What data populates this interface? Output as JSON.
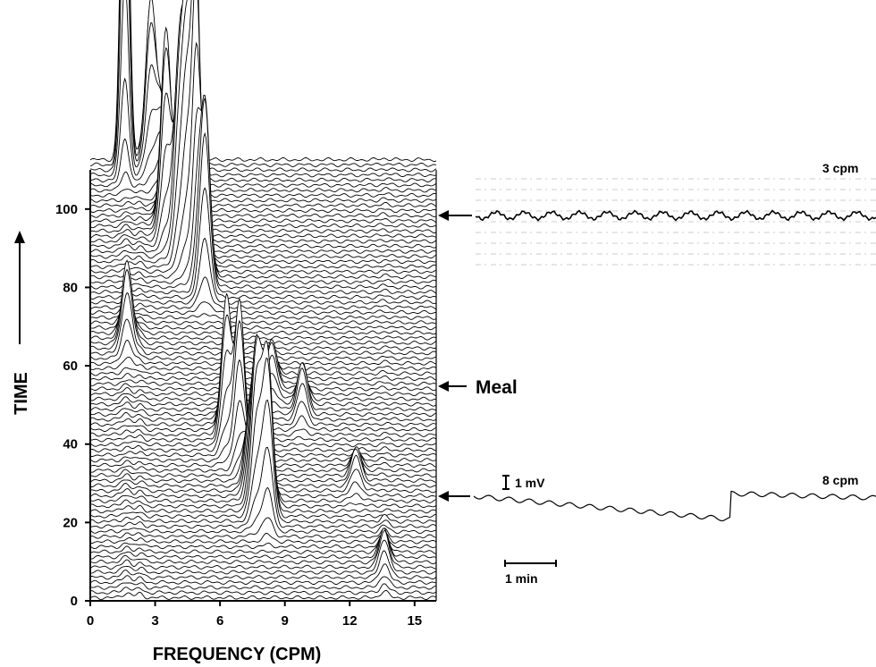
{
  "chart_data": [
    {
      "type": "waterfall-spectra",
      "xlabel": "FREQUENCY (CPM)",
      "ylabel": "TIME",
      "xlim": [
        0,
        16
      ],
      "ylim": [
        0,
        110
      ],
      "xticks": [
        0,
        3,
        6,
        9,
        12,
        15
      ],
      "yticks": [
        0,
        20,
        40,
        60,
        80,
        100
      ],
      "meal_time": 55,
      "peaks": [
        {
          "freq": 1.6,
          "time": 112,
          "height": 112
        },
        {
          "freq": 2.8,
          "time": 111,
          "height": 42
        },
        {
          "freq": 3.3,
          "time": 108,
          "height": 18
        },
        {
          "freq": 3.5,
          "time": 95,
          "height": 50
        },
        {
          "freq": 4.1,
          "time": 90,
          "height": 45
        },
        {
          "freq": 4.5,
          "time": 88,
          "height": 55
        },
        {
          "freq": 4.9,
          "time": 86,
          "height": 72
        },
        {
          "freq": 5.3,
          "time": 80,
          "height": 48
        },
        {
          "freq": 1.7,
          "time": 65,
          "height": 20
        },
        {
          "freq": 8.4,
          "time": 54,
          "height": 12
        },
        {
          "freq": 9.8,
          "time": 48,
          "height": 12
        },
        {
          "freq": 6.3,
          "time": 42,
          "height": 35
        },
        {
          "freq": 6.9,
          "time": 38,
          "height": 38
        },
        {
          "freq": 7.4,
          "time": 29,
          "height": 20
        },
        {
          "freq": 7.7,
          "time": 24,
          "height": 38
        },
        {
          "freq": 8.2,
          "time": 22,
          "height": 40
        },
        {
          "freq": 12.3,
          "time": 30,
          "height": 8
        },
        {
          "freq": 13.6,
          "time": 8,
          "height": 8
        }
      ]
    },
    {
      "type": "line",
      "label": "3 cpm",
      "arrow_time": 100,
      "cycles_per_min": 3
    },
    {
      "type": "line",
      "label": "8 cpm",
      "arrow_time": 20,
      "cycles_per_min": 8
    }
  ],
  "annotations": {
    "meal": "Meal",
    "scale_voltage": "1 mV",
    "scale_time": "1 min"
  }
}
